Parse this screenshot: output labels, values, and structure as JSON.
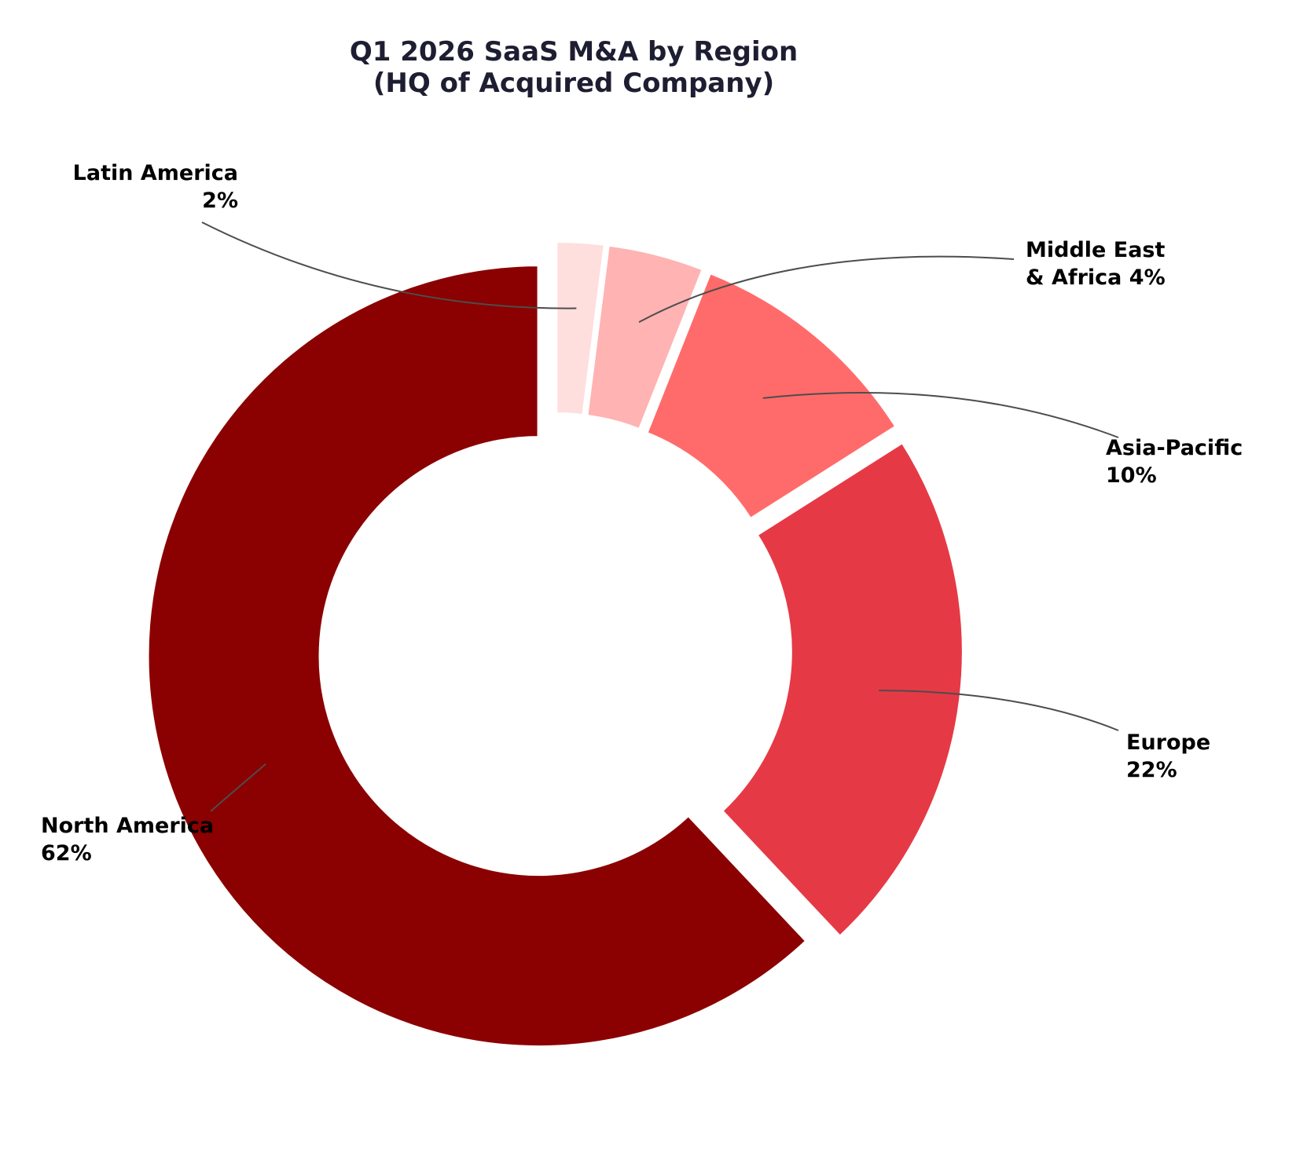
{
  "chart_data": {
    "type": "pie",
    "variant": "donut",
    "title_lines": [
      "Q1 2026 SaaS M&A by Region",
      "(HQ of Acquired Company)"
    ],
    "slices": [
      {
        "label": "North America",
        "value": 62,
        "pct_text": "62%",
        "color": "#8b0000",
        "label_lines": [
          "North America",
          "62%"
        ]
      },
      {
        "label": "Europe",
        "value": 22,
        "pct_text": "22%",
        "color": "#e63946",
        "label_lines": [
          "Europe",
          "22%"
        ]
      },
      {
        "label": "Asia-Pacific",
        "value": 10,
        "pct_text": "10%",
        "color": "#ff6b6b",
        "label_lines": [
          "Asia-Pacific",
          "10%"
        ]
      },
      {
        "label": "Middle East & Africa",
        "value": 4,
        "pct_text": "4%",
        "color": "#ffb3b3",
        "label_lines": [
          "Middle East",
          "& Africa 4%"
        ]
      },
      {
        "label": "Latin America",
        "value": 2,
        "pct_text": "2%",
        "color": "#ffdede",
        "label_lines": [
          "Latin America",
          "2%"
        ]
      }
    ],
    "start": "top",
    "direction": "counterclockwise",
    "exploded": true,
    "legend": "none",
    "label_placement": "outside with leader lines"
  }
}
